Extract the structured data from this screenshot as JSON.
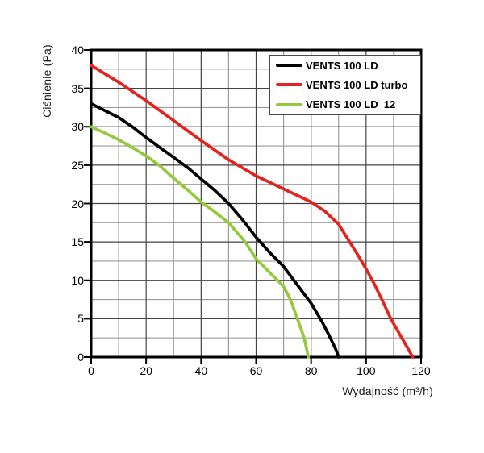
{
  "chart_data": {
    "type": "line",
    "title": "",
    "xlabel": "Wydajność (m³/h)",
    "ylabel": "Ciśnienie (Pa)",
    "xlim": [
      0,
      120
    ],
    "ylim": [
      0,
      40
    ],
    "x_ticks": [
      0,
      20,
      40,
      60,
      80,
      100,
      120
    ],
    "y_ticks": [
      0,
      5,
      10,
      15,
      20,
      25,
      30,
      35,
      40
    ],
    "x_major_step": 20,
    "x_minor_step": 10,
    "y_major_step": 5,
    "y_minor_step": 2.5,
    "grid": "major+minor",
    "legend_position": "top-right-inside",
    "series": [
      {
        "name": "VENTS 100 LD",
        "color": "#000000",
        "points": [
          [
            0,
            33
          ],
          [
            5,
            32.1
          ],
          [
            10,
            31.2
          ],
          [
            15,
            30
          ],
          [
            20,
            28.6
          ],
          [
            25,
            27.3
          ],
          [
            30,
            26
          ],
          [
            35,
            24.7
          ],
          [
            40,
            23.2
          ],
          [
            45,
            21.7
          ],
          [
            50,
            20
          ],
          [
            55,
            17.9
          ],
          [
            60,
            15.6
          ],
          [
            65,
            13.6
          ],
          [
            70,
            11.8
          ],
          [
            75,
            9.4
          ],
          [
            80,
            7
          ],
          [
            84,
            4.6
          ],
          [
            87,
            2.5
          ],
          [
            89,
            1
          ],
          [
            90,
            0
          ]
        ]
      },
      {
        "name": "VENTS 100 LD turbo",
        "color": "#e3231d",
        "points": [
          [
            0,
            38
          ],
          [
            10,
            35.8
          ],
          [
            20,
            33.4
          ],
          [
            30,
            30.8
          ],
          [
            40,
            28.2
          ],
          [
            50,
            25.7
          ],
          [
            60,
            23.6
          ],
          [
            70,
            21.9
          ],
          [
            80,
            20.2
          ],
          [
            85,
            19
          ],
          [
            90,
            17.3
          ],
          [
            94,
            15
          ],
          [
            97,
            13.3
          ],
          [
            100,
            11.5
          ],
          [
            103,
            9.5
          ],
          [
            106,
            7.3
          ],
          [
            109,
            5
          ],
          [
            113,
            2.5
          ],
          [
            117,
            0
          ]
        ]
      },
      {
        "name": "VENTS 100 LD  12",
        "color": "#95c93d",
        "points": [
          [
            0,
            30
          ],
          [
            5,
            29.2
          ],
          [
            10,
            28.3
          ],
          [
            15,
            27.3
          ],
          [
            20,
            26.2
          ],
          [
            25,
            24.9
          ],
          [
            30,
            23.3
          ],
          [
            35,
            21.8
          ],
          [
            40,
            20.2
          ],
          [
            45,
            18.9
          ],
          [
            50,
            17.5
          ],
          [
            56,
            15
          ],
          [
            60,
            12.8
          ],
          [
            65,
            11
          ],
          [
            70,
            9.2
          ],
          [
            72.5,
            7.5
          ],
          [
            75,
            5
          ],
          [
            77.5,
            2.5
          ],
          [
            79,
            0
          ]
        ]
      }
    ]
  },
  "colors": {
    "background": "#ffffff",
    "plot_border": "#000000",
    "grid_major": "#444444",
    "grid_minor": "#9b9b9b",
    "tick": "#000000",
    "text": "#1a1a1a"
  }
}
